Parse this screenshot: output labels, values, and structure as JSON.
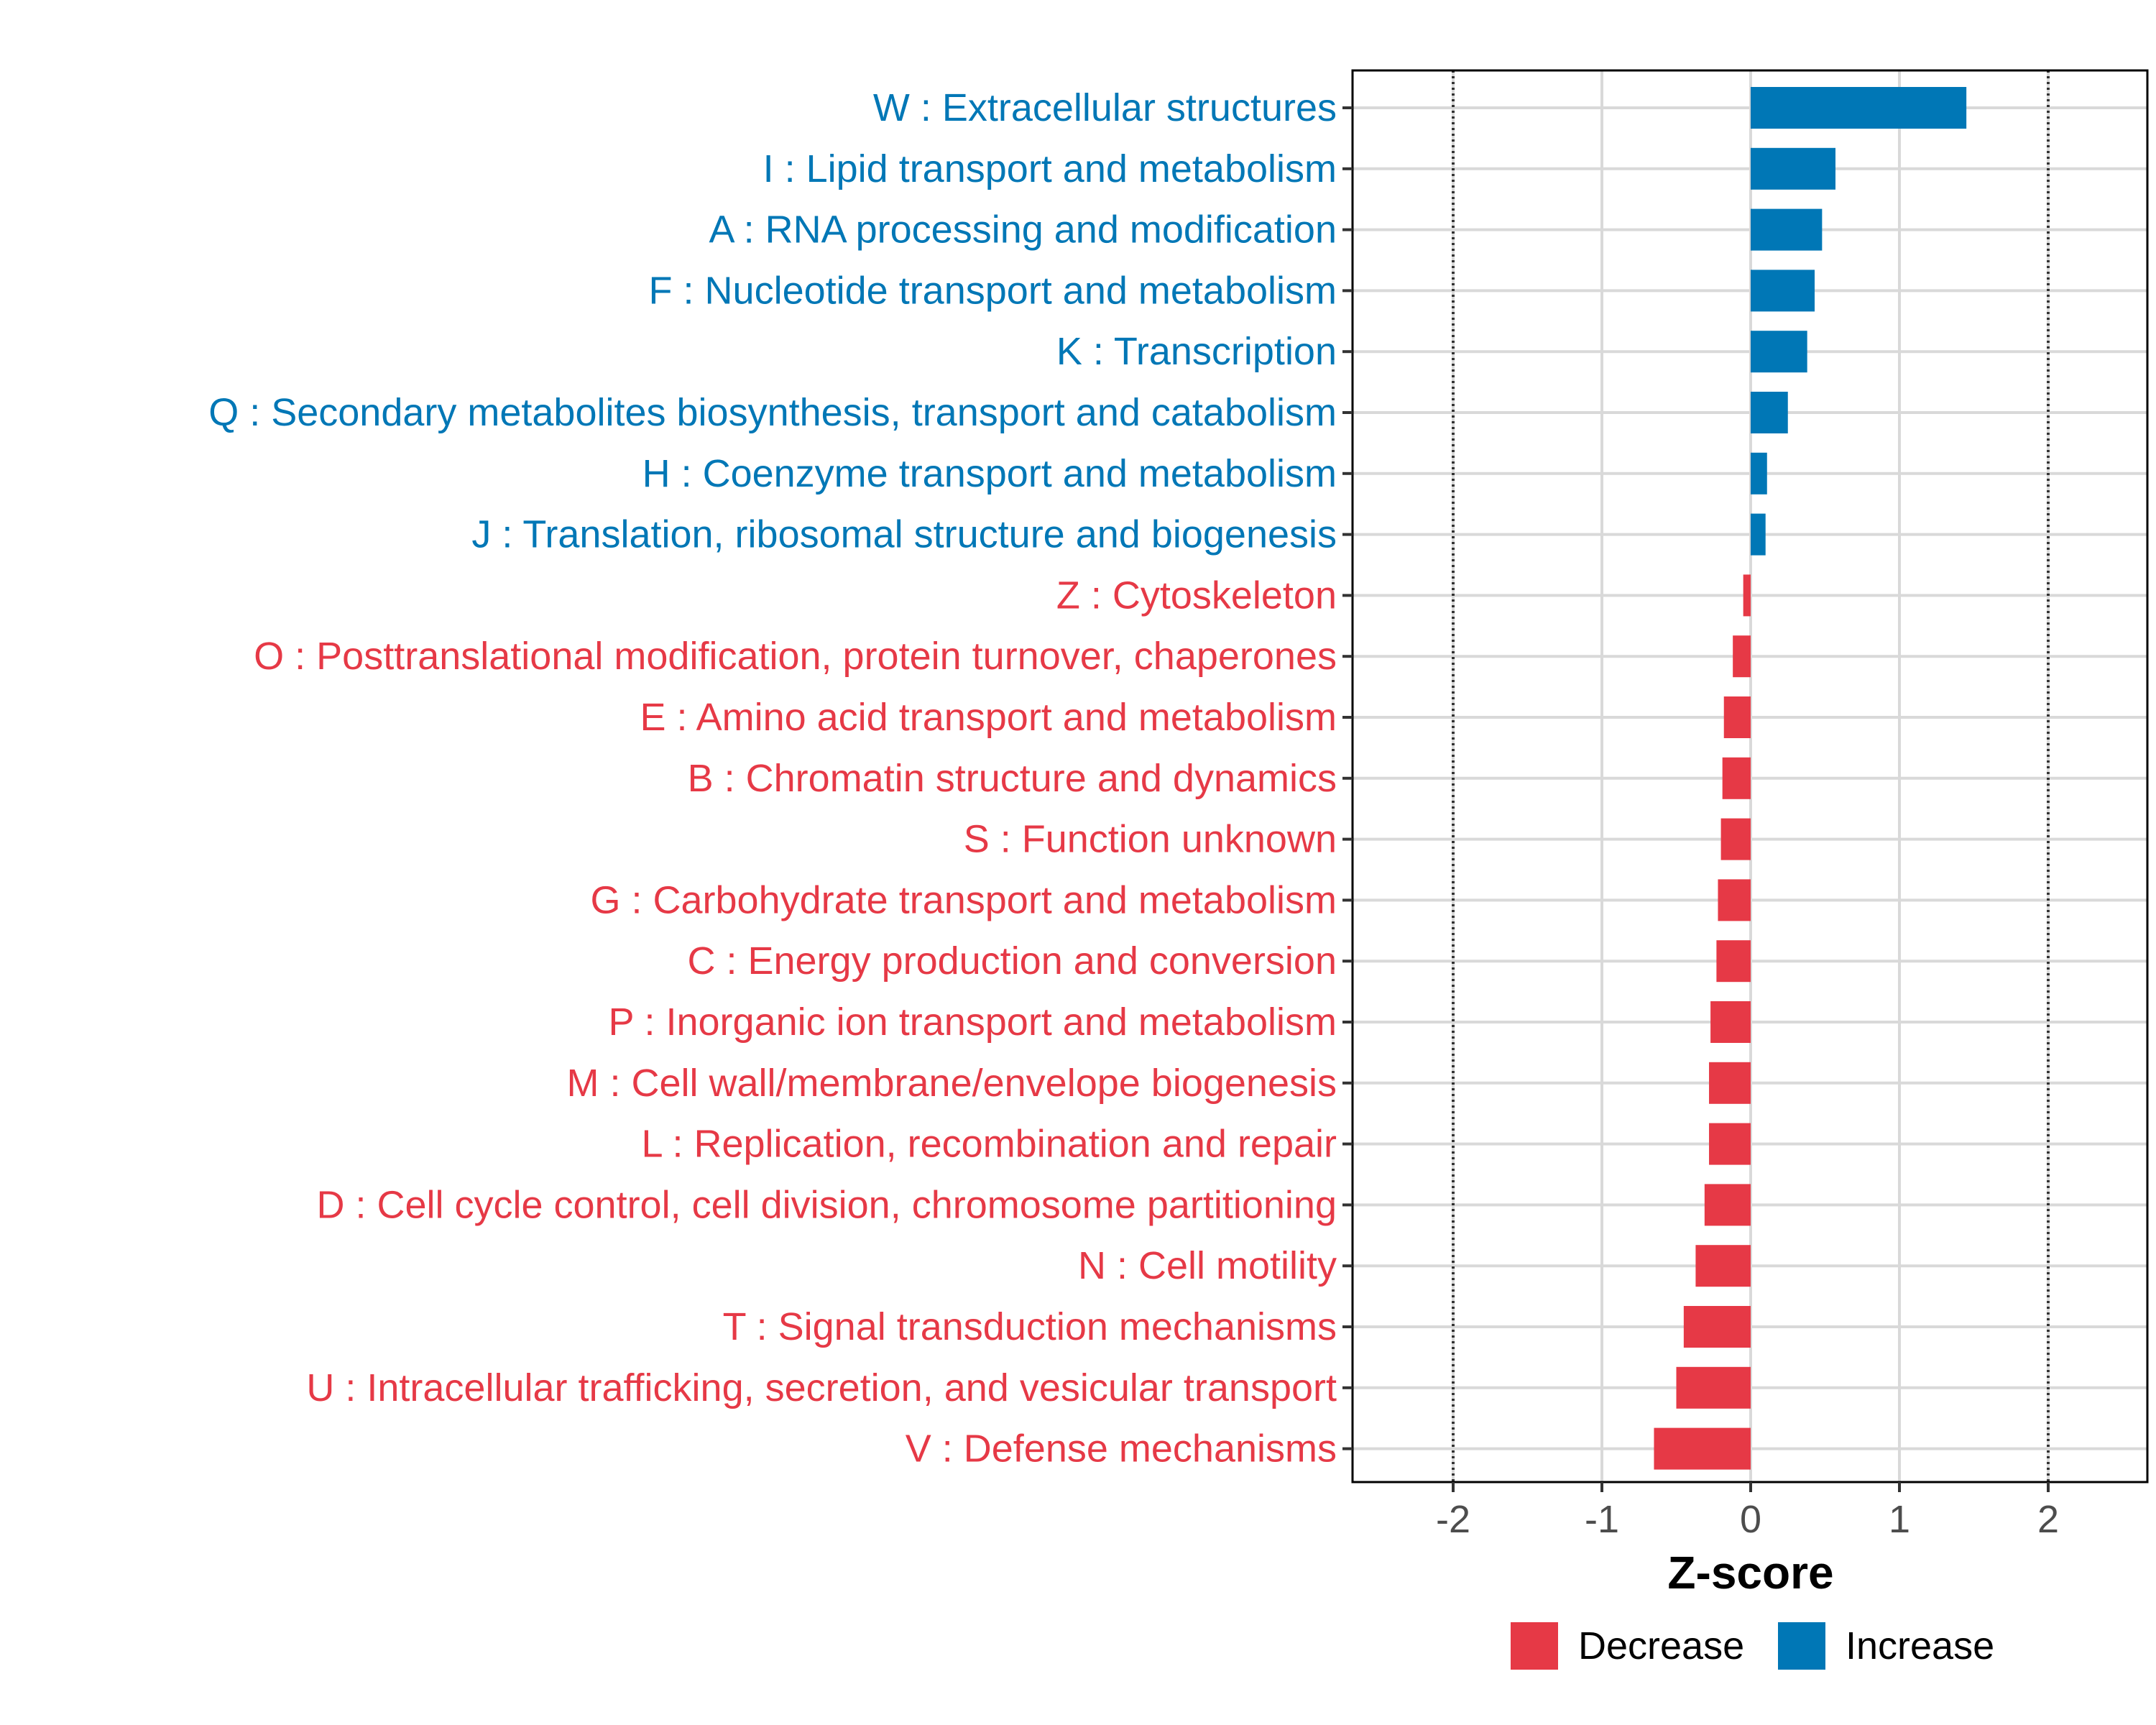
{
  "colors": {
    "decrease": "#E63946",
    "increase": "#0077B6"
  },
  "chart_data": {
    "type": "bar",
    "orientation": "horizontal",
    "xlabel": "Z-score",
    "xlim": [
      -2.7,
      2.7
    ],
    "x_ticks": [
      -2,
      -1,
      0,
      1,
      2
    ],
    "x_tick_labels": [
      "-2",
      "-1",
      "0",
      "1",
      "2"
    ],
    "reference_lines": [
      -2,
      2
    ],
    "grid": true,
    "legend": {
      "position": "bottom",
      "entries": [
        {
          "name": "Decrease",
          "color": "#E63946"
        },
        {
          "name": "Increase",
          "color": "#0077B6"
        }
      ]
    },
    "categories": [
      {
        "label": "W : Extracellular structures",
        "value": 1.45,
        "group": "Increase"
      },
      {
        "label": "I : Lipid transport and metabolism",
        "value": 0.57,
        "group": "Increase"
      },
      {
        "label": "A : RNA processing and modification",
        "value": 0.48,
        "group": "Increase"
      },
      {
        "label": "F : Nucleotide transport and metabolism",
        "value": 0.43,
        "group": "Increase"
      },
      {
        "label": "K : Transcription",
        "value": 0.38,
        "group": "Increase"
      },
      {
        "label": "Q : Secondary metabolites biosynthesis, transport and catabolism",
        "value": 0.25,
        "group": "Increase"
      },
      {
        "label": "H : Coenzyme transport and metabolism",
        "value": 0.11,
        "group": "Increase"
      },
      {
        "label": "J : Translation, ribosomal structure and biogenesis",
        "value": 0.1,
        "group": "Increase"
      },
      {
        "label": "Z : Cytoskeleton",
        "value": -0.05,
        "group": "Decrease"
      },
      {
        "label": "O : Posttranslational modification, protein turnover, chaperones",
        "value": -0.12,
        "group": "Decrease"
      },
      {
        "label": "E : Amino acid transport and metabolism",
        "value": -0.18,
        "group": "Decrease"
      },
      {
        "label": "B : Chromatin structure and dynamics",
        "value": -0.19,
        "group": "Decrease"
      },
      {
        "label": "S : Function unknown",
        "value": -0.2,
        "group": "Decrease"
      },
      {
        "label": "G : Carbohydrate transport and metabolism",
        "value": -0.22,
        "group": "Decrease"
      },
      {
        "label": "C : Energy production and conversion",
        "value": -0.23,
        "group": "Decrease"
      },
      {
        "label": "P : Inorganic ion transport and metabolism",
        "value": -0.27,
        "group": "Decrease"
      },
      {
        "label": "M : Cell wall/membrane/envelope biogenesis",
        "value": -0.28,
        "group": "Decrease"
      },
      {
        "label": "L : Replication, recombination and repair",
        "value": -0.28,
        "group": "Decrease"
      },
      {
        "label": "D : Cell cycle control, cell division, chromosome partitioning",
        "value": -0.31,
        "group": "Decrease"
      },
      {
        "label": "N : Cell motility",
        "value": -0.37,
        "group": "Decrease"
      },
      {
        "label": "T : Signal transduction mechanisms",
        "value": -0.45,
        "group": "Decrease"
      },
      {
        "label": "U : Intracellular trafficking, secretion, and vesicular transport",
        "value": -0.5,
        "group": "Decrease"
      },
      {
        "label": "V : Defense mechanisms",
        "value": -0.65,
        "group": "Decrease"
      }
    ]
  }
}
